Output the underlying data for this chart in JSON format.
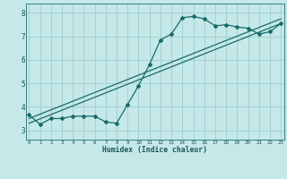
{
  "title": "",
  "xlabel": "Humidex (Indice chaleur)",
  "ylabel": "",
  "background_color": "#c5e8e8",
  "grid_color": "#9fcece",
  "line_color": "#1a6b6b",
  "x_ticks": [
    0,
    1,
    2,
    3,
    4,
    5,
    6,
    7,
    8,
    9,
    10,
    11,
    12,
    13,
    14,
    15,
    16,
    17,
    18,
    19,
    20,
    21,
    22,
    23
  ],
  "y_ticks": [
    3,
    4,
    5,
    6,
    7,
    8
  ],
  "xlim": [
    -0.3,
    23.3
  ],
  "ylim": [
    2.6,
    8.4
  ],
  "series1_x": [
    0,
    1,
    2,
    3,
    4,
    5,
    6,
    7,
    8,
    9,
    10,
    11,
    12,
    13,
    14,
    15,
    16,
    17,
    18,
    19,
    20,
    21,
    22,
    23
  ],
  "series1_y": [
    3.65,
    3.25,
    3.5,
    3.5,
    3.6,
    3.6,
    3.6,
    3.35,
    3.3,
    4.1,
    4.9,
    5.8,
    6.85,
    7.1,
    7.8,
    7.85,
    7.75,
    7.45,
    7.5,
    7.4,
    7.35,
    7.1,
    7.2,
    7.55
  ],
  "series2_x": [
    0,
    23
  ],
  "series2_y": [
    3.3,
    7.55
  ],
  "series3_x": [
    0,
    23
  ],
  "series3_y": [
    3.5,
    7.75
  ]
}
